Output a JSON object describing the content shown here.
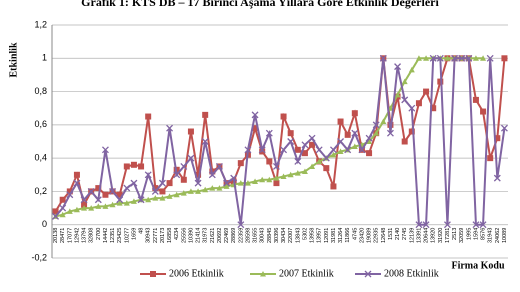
{
  "chart_data": {
    "type": "line",
    "title": "Grafik 1: KTS DB – 17 Birinci Aşama Yıllara Göre Etkinlik Değerleri",
    "y_label": "Etkinlik",
    "x_label": "Firma Kodu",
    "categories": [
      "20138",
      "28471",
      "17077",
      "12942",
      "13794",
      "32808",
      "2700",
      "14442",
      "12351",
      "23425",
      "10277",
      "1659",
      "48",
      "30943",
      "22771",
      "20173",
      "16858",
      "4234",
      "25556",
      "10390",
      "21414",
      "31973",
      "21621",
      "20692",
      "22469",
      "28869",
      "22359",
      "28598",
      "31655",
      "30043",
      "28845",
      "30396",
      "30434",
      "22007",
      "13843",
      "5302",
      "13958",
      "13957",
      "12091",
      "31981",
      "31264",
      "11866",
      "4745",
      "23420",
      "19089",
      "22935",
      "12648",
      "1531",
      "2140",
      "2745",
      "12139",
      "13391",
      "20644",
      "13920",
      "31920",
      "17281",
      "2513",
      "32059",
      "1995",
      "1594",
      "8576",
      "31943",
      "24062",
      "10089"
    ],
    "ylim": [
      -0.2,
      1.2
    ],
    "yticks": [
      {
        "value": -0.2,
        "label": "-0,2"
      },
      0,
      {
        "value": 0.2,
        "label": "0,2"
      },
      {
        "value": 0.4,
        "label": "0,4"
      },
      {
        "value": 0.6,
        "label": "0,6"
      },
      {
        "value": 0.8,
        "label": "0,8"
      },
      1,
      {
        "value": 1.2,
        "label": "1,2"
      }
    ],
    "grid": true,
    "series": [
      {
        "name": "2006 Etkinlik",
        "color": "#c0504d",
        "marker": "square",
        "values": [
          0.08,
          0.15,
          0.2,
          0.3,
          0.12,
          0.2,
          0.22,
          0.18,
          0.2,
          0.18,
          0.35,
          0.36,
          0.35,
          0.65,
          0.22,
          0.2,
          0.25,
          0.33,
          0.27,
          0.56,
          0.3,
          0.66,
          0.32,
          0.35,
          0.25,
          0.26,
          0.37,
          0.42,
          0.58,
          0.44,
          0.38,
          0.25,
          0.65,
          0.55,
          0.45,
          0.43,
          0.48,
          0.38,
          0.34,
          0.23,
          0.62,
          0.54,
          0.67,
          0.45,
          0.43,
          0.55,
          1.0,
          0.6,
          0.77,
          0.5,
          0.56,
          0.73,
          0.8,
          0.7,
          0.86,
          1.0,
          1.0,
          1.0,
          1.0,
          0.75,
          0.68,
          0.4,
          0.52,
          1.0
        ]
      },
      {
        "name": "2007 Etkinlik",
        "color": "#9bbb59",
        "marker": "triangle",
        "values": [
          0.05,
          0.06,
          0.08,
          0.09,
          0.1,
          0.1,
          0.11,
          0.11,
          0.12,
          0.13,
          0.13,
          0.14,
          0.15,
          0.15,
          0.16,
          0.16,
          0.17,
          0.18,
          0.19,
          0.2,
          0.2,
          0.21,
          0.22,
          0.22,
          0.23,
          0.24,
          0.25,
          0.25,
          0.26,
          0.27,
          0.27,
          0.28,
          0.29,
          0.3,
          0.31,
          0.32,
          0.35,
          0.38,
          0.4,
          0.42,
          0.44,
          0.45,
          0.47,
          0.48,
          0.5,
          0.55,
          0.62,
          0.7,
          0.78,
          0.86,
          0.93,
          1.0,
          1.0,
          1.0,
          1.0,
          1.0,
          1.0,
          1.0,
          1.0,
          1.0,
          1.0,
          null,
          null,
          null
        ]
      },
      {
        "name": "2008 Etkinlik",
        "color": "#8064a2",
        "marker": "x",
        "values": [
          0.05,
          0.1,
          0.18,
          0.25,
          0.15,
          0.2,
          0.15,
          0.45,
          0.2,
          0.15,
          0.22,
          0.25,
          0.15,
          0.3,
          0.2,
          0.25,
          0.58,
          0.3,
          0.35,
          0.4,
          0.25,
          0.5,
          0.3,
          0.35,
          0.25,
          0.28,
          0.0,
          0.45,
          0.66,
          0.45,
          0.55,
          0.35,
          0.45,
          0.5,
          0.38,
          0.48,
          0.52,
          0.45,
          0.4,
          0.45,
          0.5,
          0.45,
          0.55,
          0.45,
          0.52,
          0.6,
          1.0,
          0.55,
          0.95,
          0.75,
          0.7,
          0.0,
          0.0,
          1.0,
          1.0,
          0.0,
          1.0,
          1.0,
          1.0,
          0.0,
          0.0,
          1.0,
          0.28,
          0.58
        ]
      }
    ]
  }
}
